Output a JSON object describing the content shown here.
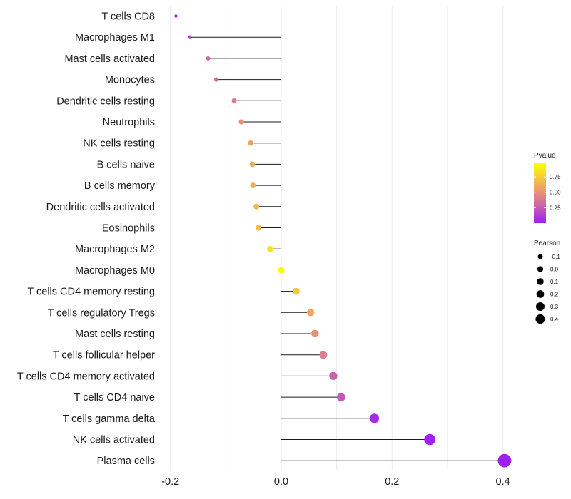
{
  "chart_data": {
    "type": "lollipop",
    "categories": [
      "T cells CD8",
      "Macrophages M1",
      "Mast cells activated",
      "Monocytes",
      "Dendritic cells resting",
      "Neutrophils",
      "NK cells resting",
      "B cells naive",
      "B cells memory",
      "Dendritic cells activated",
      "Eosinophils",
      "Macrophages M2",
      "Macrophages M0",
      "T cells CD4 memory resting",
      "T cells regulatory  Tregs ",
      "Mast cells resting",
      "T cells follicular helper",
      "T cells CD4 memory activated",
      "T cells CD4 naive",
      "T cells gamma delta",
      "NK cells activated",
      "Plasma cells"
    ],
    "values": [
      -0.19,
      -0.165,
      -0.132,
      -0.117,
      -0.085,
      -0.072,
      -0.055,
      -0.052,
      -0.051,
      -0.045,
      -0.041,
      -0.02,
      0.0,
      0.027,
      0.053,
      0.061,
      0.076,
      0.094,
      0.108,
      0.168,
      0.268,
      0.403
    ],
    "pvalues": [
      0.05,
      0.12,
      0.3,
      0.35,
      0.42,
      0.5,
      0.6,
      0.63,
      0.63,
      0.68,
      0.7,
      0.88,
      0.99,
      0.75,
      0.6,
      0.5,
      0.42,
      0.3,
      0.25,
      0.05,
      0.01,
      0.0
    ],
    "xlim": [
      -0.2,
      0.4
    ],
    "x_ticks": [
      -0.2,
      0.0,
      0.2,
      0.4
    ],
    "x_tick_labels": [
      "-0.2",
      "0.0",
      "0.2",
      "0.4"
    ],
    "color_legend": {
      "title": "Pvalue",
      "ticks": [
        0.75,
        0.5,
        0.25
      ],
      "tick_labels": [
        "0.75",
        "0.50",
        "0.25"
      ],
      "low_color": "#a020f0",
      "high_color": "#ffff00"
    },
    "size_legend": {
      "title": "Pearson",
      "values": [
        -0.1,
        0.0,
        0.1,
        0.2,
        0.3,
        0.4
      ],
      "labels": [
        "-0.1",
        "0.0",
        "0.1",
        "0.2",
        "0.3",
        "0.4"
      ]
    },
    "grid": true,
    "legend_position": "right"
  }
}
